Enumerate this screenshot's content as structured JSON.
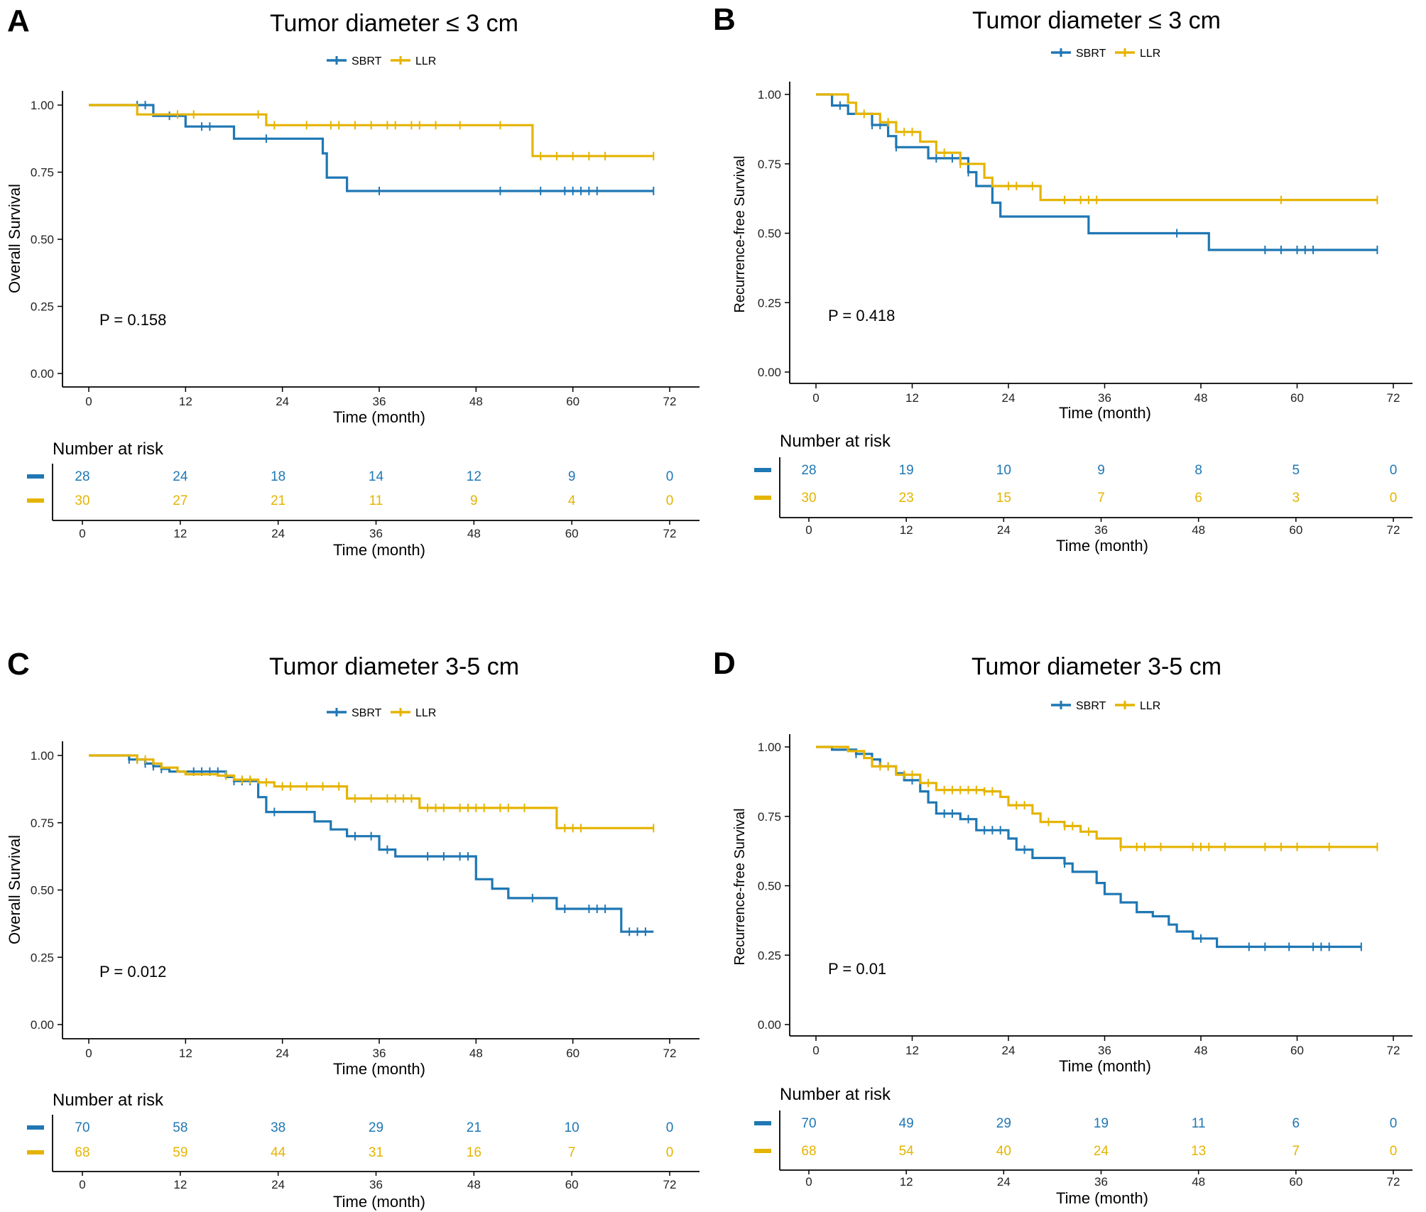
{
  "figure": {
    "series_colors": {
      "SBRT": "#1f77b4",
      "LLR": "#e5b400"
    },
    "legend_labels": [
      "SBRT",
      "LLR"
    ],
    "risk_table_title": "Number at risk"
  },
  "chart_data": [
    {
      "panel_letter": "A",
      "type": "line",
      "title": "Tumor diameter ≤ 3 cm",
      "xlabel": "Time (month)",
      "ylabel": "Overall Survival",
      "xlim": [
        0,
        72
      ],
      "ylim": [
        0,
        1
      ],
      "xticks": [
        0,
        12,
        24,
        36,
        48,
        60,
        72
      ],
      "yticks": [
        "0.00",
        "0.25",
        "0.50",
        "0.75",
        "1.00"
      ],
      "p_value": "P = 0.158",
      "series": [
        {
          "name": "SBRT",
          "color": "#1f77b4",
          "steps": [
            [
              0,
              1.0
            ],
            [
              8,
              0.96
            ],
            [
              12,
              0.92
            ],
            [
              18,
              0.875
            ],
            [
              29,
              0.82
            ],
            [
              29.5,
              0.73
            ],
            [
              32,
              0.68
            ],
            [
              70,
              0.68
            ]
          ],
          "censor": [
            6,
            7,
            10,
            14,
            15,
            22,
            36,
            51,
            56,
            59,
            60,
            61,
            62,
            63,
            70
          ]
        },
        {
          "name": "LLR",
          "color": "#e5b400",
          "steps": [
            [
              0,
              1.0
            ],
            [
              6,
              0.965
            ],
            [
              22,
              0.925
            ],
            [
              55,
              0.81
            ],
            [
              70,
              0.81
            ]
          ],
          "censor": [
            11,
            13,
            21,
            23,
            27,
            30,
            31,
            33,
            35,
            37,
            38,
            40,
            41,
            43,
            46,
            51,
            56,
            58,
            60,
            62,
            64,
            70
          ]
        }
      ],
      "risk_table": {
        "times": [
          0,
          12,
          24,
          36,
          48,
          60,
          72
        ],
        "SBRT": [
          28,
          24,
          18,
          14,
          12,
          9,
          0
        ],
        "LLR": [
          30,
          27,
          21,
          11,
          9,
          4,
          0
        ]
      }
    },
    {
      "panel_letter": "B",
      "type": "line",
      "title": "Tumor diameter ≤ 3 cm",
      "xlabel": "Time (month)",
      "ylabel": "Recurrence-free Survival",
      "xlim": [
        0,
        72
      ],
      "ylim": [
        0,
        1
      ],
      "xticks": [
        0,
        12,
        24,
        36,
        48,
        60,
        72
      ],
      "yticks": [
        "0.00",
        "0.25",
        "0.50",
        "0.75",
        "1.00"
      ],
      "p_value": "P = 0.418",
      "series": [
        {
          "name": "SBRT",
          "color": "#1f77b4",
          "steps": [
            [
              0,
              1.0
            ],
            [
              2,
              0.96
            ],
            [
              4,
              0.93
            ],
            [
              7,
              0.89
            ],
            [
              9,
              0.85
            ],
            [
              10,
              0.81
            ],
            [
              14,
              0.77
            ],
            [
              19,
              0.72
            ],
            [
              20,
              0.67
            ],
            [
              22,
              0.61
            ],
            [
              23,
              0.56
            ],
            [
              34,
              0.5
            ],
            [
              49,
              0.44
            ],
            [
              70,
              0.44
            ]
          ],
          "censor": [
            3,
            7,
            8,
            10,
            15,
            17,
            19,
            45,
            56,
            58,
            60,
            61,
            62,
            70
          ]
        },
        {
          "name": "LLR",
          "color": "#e5b400",
          "steps": [
            [
              0,
              1.0
            ],
            [
              4,
              0.97
            ],
            [
              5,
              0.93
            ],
            [
              8,
              0.9
            ],
            [
              10,
              0.865
            ],
            [
              13,
              0.83
            ],
            [
              15,
              0.79
            ],
            [
              18,
              0.75
            ],
            [
              21,
              0.7
            ],
            [
              22,
              0.67
            ],
            [
              28,
              0.62
            ],
            [
              70,
              0.62
            ]
          ],
          "censor": [
            6,
            9,
            11,
            12,
            16,
            18,
            24,
            25,
            27,
            31,
            33,
            34,
            35,
            58,
            70
          ]
        }
      ],
      "risk_table": {
        "times": [
          0,
          12,
          24,
          36,
          48,
          60,
          72
        ],
        "SBRT": [
          28,
          19,
          10,
          9,
          8,
          5,
          0
        ],
        "LLR": [
          30,
          23,
          15,
          7,
          6,
          3,
          0
        ]
      }
    },
    {
      "panel_letter": "C",
      "type": "line",
      "title": "Tumor diameter 3-5 cm",
      "xlabel": "Time (month)",
      "ylabel": "Overall Survival",
      "xlim": [
        0,
        72
      ],
      "ylim": [
        0,
        1
      ],
      "xticks": [
        0,
        12,
        24,
        36,
        48,
        60,
        72
      ],
      "yticks": [
        "0.00",
        "0.25",
        "0.50",
        "0.75",
        "1.00"
      ],
      "p_value": "P = 0.012",
      "series": [
        {
          "name": "SBRT",
          "color": "#1f77b4",
          "steps": [
            [
              0,
              1.0
            ],
            [
              5,
              0.985
            ],
            [
              7,
              0.97
            ],
            [
              8,
              0.96
            ],
            [
              9,
              0.95
            ],
            [
              10,
              0.94
            ],
            [
              17,
              0.92
            ],
            [
              18,
              0.905
            ],
            [
              21,
              0.845
            ],
            [
              22,
              0.79
            ],
            [
              28,
              0.755
            ],
            [
              30,
              0.725
            ],
            [
              32,
              0.7
            ],
            [
              36,
              0.65
            ],
            [
              38,
              0.625
            ],
            [
              48,
              0.54
            ],
            [
              50,
              0.505
            ],
            [
              52,
              0.47
            ],
            [
              58,
              0.43
            ],
            [
              66,
              0.345
            ],
            [
              70,
              0.345
            ]
          ],
          "censor": [
            5,
            6,
            7,
            8,
            9,
            13,
            14,
            15,
            16,
            18,
            19,
            20,
            23,
            33,
            35,
            37,
            42,
            44,
            46,
            47,
            55,
            59,
            62,
            63,
            64,
            67,
            68,
            69
          ]
        },
        {
          "name": "LLR",
          "color": "#e5b400",
          "steps": [
            [
              0,
              1.0
            ],
            [
              6,
              0.985
            ],
            [
              8,
              0.97
            ],
            [
              9,
              0.955
            ],
            [
              11,
              0.94
            ],
            [
              12,
              0.93
            ],
            [
              16,
              0.925
            ],
            [
              18,
              0.91
            ],
            [
              21,
              0.9
            ],
            [
              23,
              0.885
            ],
            [
              32,
              0.84
            ],
            [
              41,
              0.805
            ],
            [
              58,
              0.73
            ],
            [
              70,
              0.73
            ]
          ],
          "censor": [
            6,
            7,
            17,
            19,
            20,
            22,
            24,
            25,
            27,
            29,
            31,
            33,
            35,
            37,
            38,
            39,
            40,
            42,
            43,
            44,
            46,
            47,
            48,
            49,
            51,
            52,
            54,
            59,
            60,
            61,
            70
          ]
        }
      ],
      "risk_table": {
        "times": [
          0,
          12,
          24,
          36,
          48,
          60,
          72
        ],
        "SBRT": [
          70,
          58,
          38,
          29,
          21,
          10,
          0
        ],
        "LLR": [
          68,
          59,
          44,
          31,
          16,
          7,
          0
        ]
      }
    },
    {
      "panel_letter": "D",
      "type": "line",
      "title": "Tumor diameter 3-5 cm",
      "xlabel": "Time (month)",
      "ylabel": "Recurrence-free Survival",
      "xlim": [
        0,
        72
      ],
      "ylim": [
        0,
        1
      ],
      "xticks": [
        0,
        12,
        24,
        36,
        48,
        60,
        72
      ],
      "yticks": [
        "0.00",
        "0.25",
        "0.50",
        "0.75",
        "1.00"
      ],
      "p_value": "P = 0.01",
      "series": [
        {
          "name": "SBRT",
          "color": "#1f77b4",
          "steps": [
            [
              0,
              1.0
            ],
            [
              2,
              0.99
            ],
            [
              5,
              0.975
            ],
            [
              7,
              0.955
            ],
            [
              8,
              0.93
            ],
            [
              10,
              0.905
            ],
            [
              11,
              0.88
            ],
            [
              13,
              0.84
            ],
            [
              14,
              0.8
            ],
            [
              15,
              0.76
            ],
            [
              18,
              0.74
            ],
            [
              20,
              0.7
            ],
            [
              24,
              0.67
            ],
            [
              25,
              0.63
            ],
            [
              27,
              0.6
            ],
            [
              31,
              0.58
            ],
            [
              32,
              0.55
            ],
            [
              35,
              0.51
            ],
            [
              36,
              0.47
            ],
            [
              38,
              0.44
            ],
            [
              40,
              0.405
            ],
            [
              42,
              0.39
            ],
            [
              44,
              0.36
            ],
            [
              45,
              0.335
            ],
            [
              47,
              0.31
            ],
            [
              50,
              0.28
            ],
            [
              68,
              0.28
            ]
          ],
          "censor": [
            5,
            9,
            12,
            16,
            17,
            19,
            21,
            22,
            23,
            26,
            31,
            48,
            54,
            56,
            59,
            62,
            63,
            64,
            68
          ]
        },
        {
          "name": "LLR",
          "color": "#e5b400",
          "steps": [
            [
              0,
              1.0
            ],
            [
              4,
              0.985
            ],
            [
              6,
              0.96
            ],
            [
              7,
              0.93
            ],
            [
              10,
              0.9
            ],
            [
              13,
              0.87
            ],
            [
              15,
              0.845
            ],
            [
              21,
              0.84
            ],
            [
              23,
              0.82
            ],
            [
              24,
              0.79
            ],
            [
              27,
              0.76
            ],
            [
              28,
              0.73
            ],
            [
              31,
              0.715
            ],
            [
              33,
              0.695
            ],
            [
              35,
              0.67
            ],
            [
              38,
              0.64
            ],
            [
              70,
              0.64
            ]
          ],
          "censor": [
            8,
            9,
            11,
            12,
            14,
            16,
            17,
            18,
            19,
            20,
            21,
            22,
            25,
            26,
            29,
            31,
            32,
            34,
            38,
            40,
            41,
            43,
            47,
            48,
            49,
            51,
            56,
            58,
            60,
            64,
            70
          ]
        }
      ],
      "risk_table": {
        "times": [
          0,
          12,
          24,
          36,
          48,
          60,
          72
        ],
        "SBRT": [
          70,
          49,
          29,
          19,
          11,
          6,
          0
        ],
        "LLR": [
          68,
          54,
          40,
          24,
          13,
          7,
          0
        ]
      }
    }
  ]
}
